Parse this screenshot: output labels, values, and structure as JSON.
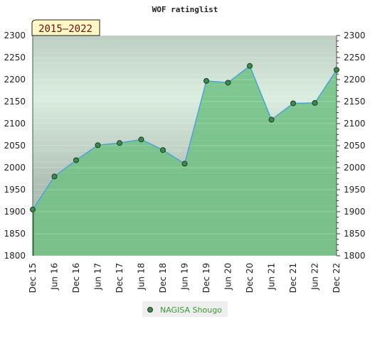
{
  "chart_data": {
    "type": "area",
    "title": "WOF ratinglist",
    "period_badge": "2015–2022",
    "xlabel": "",
    "ylabel": "",
    "ylim": [
      1800,
      2300
    ],
    "y_ticks": [
      1800,
      1850,
      1900,
      1950,
      2000,
      2050,
      2100,
      2150,
      2200,
      2250,
      2300
    ],
    "x_tick_labels": [
      "Dec 15",
      "Jun 16",
      "Dec 16",
      "Jun 17",
      "Dec 17",
      "Jun 18",
      "Dec 18",
      "Jun 19",
      "Dec 19",
      "Jun 20",
      "Dec 20",
      "Jun 21",
      "Dec 21",
      "Jun 22",
      "Dec 22"
    ],
    "grid": true,
    "legend_position": "bottom-center",
    "colors": {
      "line": "#4aa3d9",
      "marker": "#3c8a4e",
      "fill": "#76bd8a",
      "legend_text": "#3a9a3a",
      "badge_bg": "#fff7c4"
    },
    "series": [
      {
        "name": "NAGISA Shougo",
        "x": [
          "Dec 15",
          "Jun 16",
          "Dec 16",
          "Jun 17",
          "Dec 17",
          "Jun 18",
          "Dec 18",
          "Jun 19",
          "Dec 19",
          "Jun 20",
          "Dec 20",
          "Jun 21",
          "Dec 21",
          "Jun 22",
          "Dec 22"
        ],
        "values": [
          1905,
          1980,
          2017,
          2051,
          2056,
          2064,
          2040,
          2009,
          2197,
          2193,
          2231,
          2109,
          2146,
          2147,
          2222
        ]
      }
    ]
  }
}
